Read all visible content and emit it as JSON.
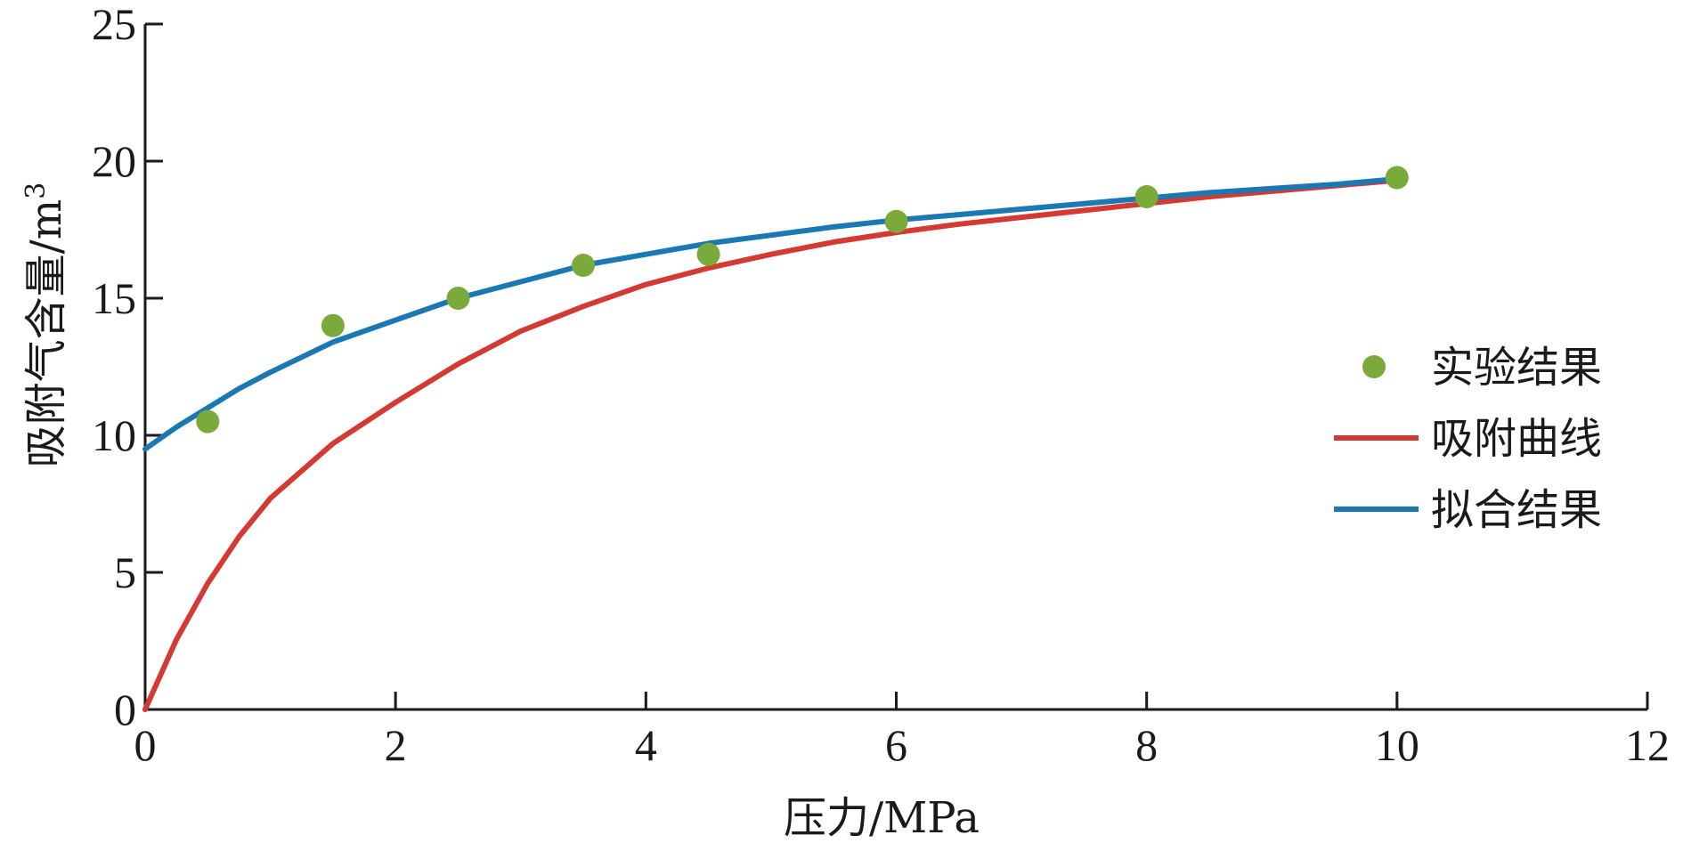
{
  "chart_data": {
    "type": "line",
    "xlabel": "压力/MPa",
    "ylabel_main": "吸附气含量/m",
    "ylabel_sup": "3",
    "xlim": [
      0,
      12
    ],
    "ylim": [
      0,
      25
    ],
    "xticks": [
      0,
      2,
      4,
      6,
      8,
      10,
      12
    ],
    "yticks": [
      0,
      5,
      10,
      15,
      20,
      25
    ],
    "xtick_labels": [
      "0",
      "2",
      "4",
      "6",
      "8",
      "10",
      "12"
    ],
    "ytick_labels": [
      "0",
      "5",
      "10",
      "15",
      "20",
      "25"
    ],
    "grid": false,
    "legend_position": "right",
    "series": [
      {
        "name": "实验结果",
        "kind": "scatter",
        "color": "#7aab3a",
        "x": [
          0.5,
          1.5,
          2.5,
          3.5,
          4.5,
          6.0,
          8.0,
          10.0
        ],
        "y": [
          10.5,
          14.0,
          15.0,
          16.2,
          16.6,
          17.8,
          18.7,
          19.4
        ]
      },
      {
        "name": "吸附曲线",
        "kind": "line",
        "color": "#d43a32",
        "x": [
          0,
          0.25,
          0.5,
          0.75,
          1,
          1.5,
          2,
          2.5,
          3,
          3.5,
          4,
          4.5,
          5,
          5.5,
          6,
          6.5,
          7,
          7.5,
          8,
          8.5,
          9,
          9.5,
          10
        ],
        "y": [
          0,
          2.55,
          4.6,
          6.3,
          7.7,
          9.7,
          11.2,
          12.6,
          13.8,
          14.7,
          15.5,
          16.1,
          16.6,
          17.05,
          17.4,
          17.7,
          17.95,
          18.2,
          18.45,
          18.7,
          18.9,
          19.1,
          19.3
        ]
      },
      {
        "name": "拟合结果",
        "kind": "line",
        "color": "#1a78b4",
        "x": [
          0,
          0.25,
          0.5,
          0.75,
          1,
          1.5,
          2,
          2.5,
          3,
          3.5,
          4,
          4.5,
          5,
          5.5,
          6,
          6.5,
          7,
          7.5,
          8,
          8.5,
          9,
          9.5,
          10
        ],
        "y": [
          9.5,
          10.3,
          11.0,
          11.7,
          12.3,
          13.4,
          14.2,
          15.0,
          15.6,
          16.2,
          16.6,
          17.0,
          17.3,
          17.6,
          17.85,
          18.05,
          18.25,
          18.45,
          18.65,
          18.85,
          19.0,
          19.15,
          19.35
        ]
      }
    ]
  }
}
